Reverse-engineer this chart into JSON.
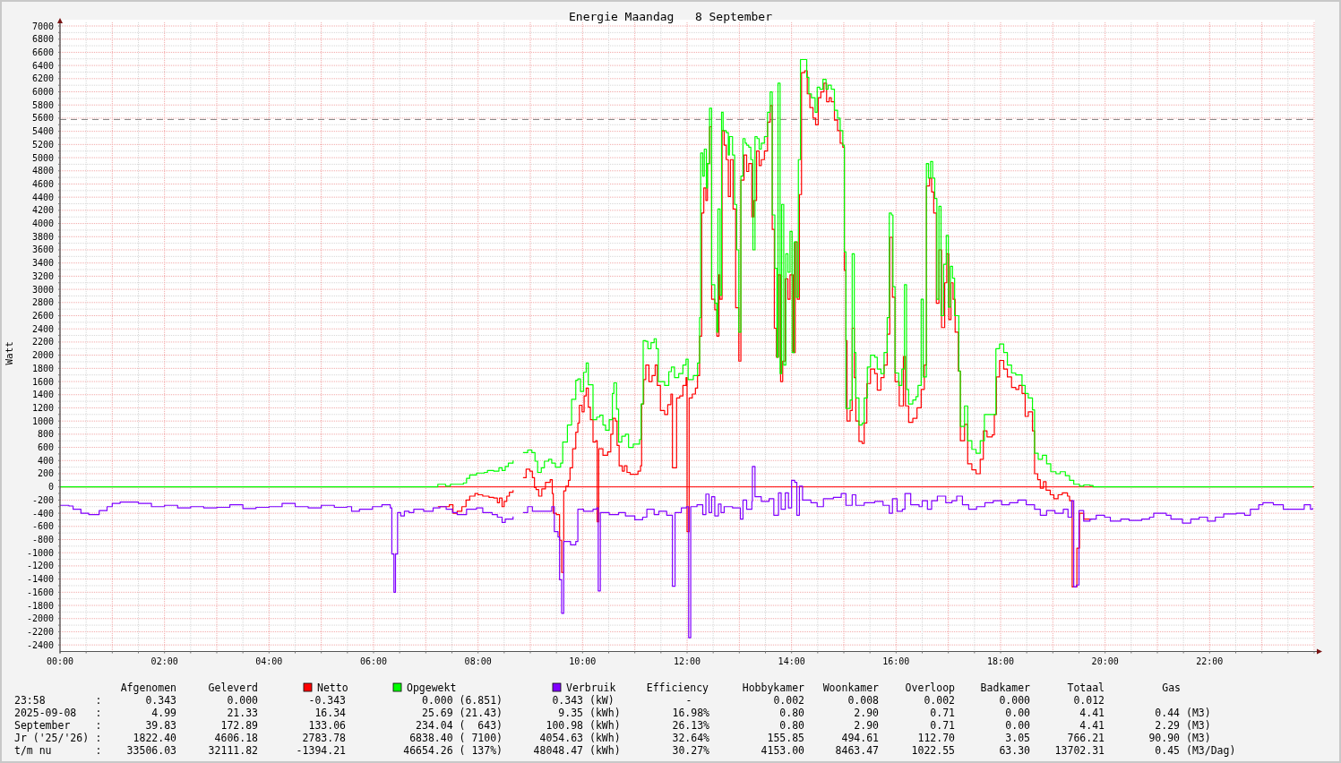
{
  "chart_data": {
    "type": "step",
    "title": "Energie Maandag   8 September",
    "ylabel": "Watt",
    "xlim": [
      0,
      24
    ],
    "ylim": [
      -2500,
      7000
    ],
    "xticks": [
      {
        "value": 0,
        "label": "00:00"
      },
      {
        "value": 0.5,
        "label": null
      },
      {
        "value": 1,
        "label": null
      },
      {
        "value": 1.5,
        "label": null
      },
      {
        "value": 2,
        "label": "02:00"
      },
      {
        "value": 2.5,
        "label": null
      },
      {
        "value": 3,
        "label": null
      },
      {
        "value": 3.5,
        "label": null
      },
      {
        "value": 4,
        "label": "04:00"
      },
      {
        "value": 4.5,
        "label": null
      },
      {
        "value": 5,
        "label": null
      },
      {
        "value": 5.5,
        "label": null
      },
      {
        "value": 6,
        "label": "06:00"
      },
      {
        "value": 6.5,
        "label": null
      },
      {
        "value": 7,
        "label": null
      },
      {
        "value": 7.5,
        "label": null
      },
      {
        "value": 8,
        "label": "08:00"
      },
      {
        "value": 8.5,
        "label": null
      },
      {
        "value": 9,
        "label": null
      },
      {
        "value": 9.5,
        "label": null
      },
      {
        "value": 10,
        "label": "10:00"
      },
      {
        "value": 10.5,
        "label": null
      },
      {
        "value": 11,
        "label": null
      },
      {
        "value": 11.5,
        "label": null
      },
      {
        "value": 12,
        "label": "12:00"
      },
      {
        "value": 12.5,
        "label": null
      },
      {
        "value": 13,
        "label": null
      },
      {
        "value": 13.5,
        "label": null
      },
      {
        "value": 14,
        "label": "14:00"
      },
      {
        "value": 14.5,
        "label": null
      },
      {
        "value": 15,
        "label": null
      },
      {
        "value": 15.5,
        "label": null
      },
      {
        "value": 16,
        "label": "16:00"
      },
      {
        "value": 16.5,
        "label": null
      },
      {
        "value": 17,
        "label": null
      },
      {
        "value": 17.5,
        "label": null
      },
      {
        "value": 18,
        "label": "18:00"
      },
      {
        "value": 18.5,
        "label": null
      },
      {
        "value": 19,
        "label": null
      },
      {
        "value": 19.5,
        "label": null
      },
      {
        "value": 20,
        "label": "20:00"
      },
      {
        "value": 20.5,
        "label": null
      },
      {
        "value": 21,
        "label": null
      },
      {
        "value": 21.5,
        "label": null
      },
      {
        "value": 22,
        "label": "22:00"
      },
      {
        "value": 22.5,
        "label": null
      },
      {
        "value": 23,
        "label": null
      },
      {
        "value": 23.5,
        "label": null
      },
      {
        "value": 24,
        "label": null
      }
    ],
    "yticks": [
      -2400,
      {
        "value": -2300,
        "label": null
      },
      -2200,
      {
        "value": -2100,
        "label": null
      },
      -2000,
      {
        "value": -1900,
        "label": null
      },
      -1800,
      {
        "value": -1700,
        "label": null
      },
      -1600,
      {
        "value": -1500,
        "label": null
      },
      -1400,
      {
        "value": -1300,
        "label": null
      },
      -1200,
      {
        "value": -1100,
        "label": null
      },
      -1000,
      {
        "value": -900,
        "label": null
      },
      -800,
      {
        "value": -700,
        "label": null
      },
      -600,
      {
        "value": -500,
        "label": null
      },
      -400,
      {
        "value": -300,
        "label": null
      },
      -200,
      {
        "value": -100,
        "label": null
      },
      0,
      {
        "value": 100,
        "label": null
      },
      200,
      {
        "value": 300,
        "label": null
      },
      400,
      {
        "value": 500,
        "label": null
      },
      600,
      {
        "value": 700,
        "label": null
      },
      800,
      {
        "value": 900,
        "label": null
      },
      1000,
      {
        "value": 1100,
        "label": null
      },
      1200,
      {
        "value": 1300,
        "label": null
      },
      1400,
      {
        "value": 1500,
        "label": null
      },
      1600,
      {
        "value": 1700,
        "label": null
      },
      1800,
      {
        "value": 1900,
        "label": null
      },
      2000,
      {
        "value": 2100,
        "label": null
      },
      2200,
      {
        "value": 2300,
        "label": null
      },
      2400,
      {
        "value": 2500,
        "label": null
      },
      2600,
      {
        "value": 2700,
        "label": null
      },
      2800,
      {
        "value": 2900,
        "label": null
      },
      3000,
      {
        "value": 3100,
        "label": null
      },
      3200,
      {
        "value": 3300,
        "label": null
      },
      3400,
      {
        "value": 3500,
        "label": null
      },
      3600,
      {
        "value": 3700,
        "label": null
      },
      3800,
      {
        "value": 3900,
        "label": null
      },
      4000,
      {
        "value": 4100,
        "label": null
      },
      4200,
      {
        "value": 4300,
        "label": null
      },
      4400,
      {
        "value": 4500,
        "label": null
      },
      4600,
      {
        "value": 4700,
        "label": null
      },
      4800,
      {
        "value": 4900,
        "label": null
      },
      5000,
      {
        "value": 5100,
        "label": null
      },
      5200,
      {
        "value": 5300,
        "label": null
      },
      5400,
      {
        "value": 5500,
        "label": null
      },
      5600,
      {
        "value": 5700,
        "label": null
      },
      5800,
      {
        "value": 5900,
        "label": null
      },
      6000,
      {
        "value": 6100,
        "label": null
      },
      6200,
      {
        "value": 6300,
        "label": null
      },
      6400,
      {
        "value": 6500,
        "label": null
      },
      6600,
      {
        "value": 6700,
        "label": null
      },
      6800,
      {
        "value": 6900,
        "label": null
      },
      7000
    ],
    "grid": true,
    "legend": "bottom",
    "ref_lines": [
      {
        "axis": "y",
        "value": 0,
        "color": "#ff0000"
      },
      {
        "axis": "y",
        "value": 5580,
        "color": "#808080",
        "line_style": "dashed"
      }
    ],
    "series": [
      {
        "name": "Netto",
        "color": "#ff0000",
        "x": [
          7.23,
          7.45,
          7.52,
          7.6,
          7.69,
          7.77,
          7.84,
          7.94,
          8.0,
          8.09,
          8.21,
          8.3,
          8.37,
          8.41,
          8.46,
          8.5,
          8.55,
          8.6,
          8.67,
          8.72,
          8.86,
          8.92,
          8.99,
          9.04,
          9.08,
          9.11,
          9.16,
          9.22,
          9.29,
          9.38,
          9.42,
          9.44,
          9.5,
          9.56,
          9.6,
          9.64,
          9.68,
          9.73,
          9.76,
          9.81,
          9.87,
          9.91,
          9.94,
          9.99,
          10.03,
          10.07,
          10.11,
          10.15,
          10.2,
          10.25,
          10.28,
          10.31,
          10.39,
          10.48,
          10.54,
          10.58,
          10.63,
          10.66,
          10.7,
          10.76,
          10.8,
          10.85,
          10.91,
          11.06,
          11.11,
          11.13,
          11.17,
          11.21,
          11.27,
          11.33,
          11.39,
          11.43,
          11.49,
          11.57,
          11.63,
          11.69,
          11.72,
          11.8,
          11.86,
          11.92,
          11.98,
          12.0,
          12.04,
          12.1,
          12.16,
          12.2,
          12.24,
          12.28,
          12.32,
          12.36,
          12.39,
          12.43,
          12.47,
          12.53,
          12.57,
          12.61,
          12.63,
          12.67,
          12.71,
          12.75,
          12.79,
          12.83,
          12.88,
          12.93,
          12.99,
          13.03,
          13.09,
          13.14,
          13.18,
          13.24,
          13.28,
          13.33,
          13.38,
          13.42,
          13.48,
          13.54,
          13.59,
          13.63,
          13.67,
          13.71,
          13.75,
          13.79,
          13.83,
          13.88,
          13.93,
          13.97,
          14.03,
          14.07,
          14.11,
          14.15,
          14.19,
          14.25,
          14.3,
          14.35,
          14.41,
          14.46,
          14.51,
          14.56,
          14.62,
          14.67,
          14.72,
          14.76,
          14.82,
          14.88,
          14.93,
          14.98,
          15.01,
          15.04,
          15.06,
          15.12,
          15.16,
          15.2,
          15.23,
          15.29,
          15.35,
          15.39,
          15.44,
          15.51,
          15.59,
          15.64,
          15.71,
          15.77,
          15.83,
          15.88,
          15.93,
          15.98,
          16.06,
          16.14,
          16.18,
          16.24,
          16.32,
          16.4,
          16.48,
          16.54,
          16.58,
          16.64,
          16.68,
          16.72,
          16.77,
          16.82,
          16.87,
          16.93,
          16.97,
          17.01,
          17.05,
          17.09,
          17.13,
          17.19,
          17.23,
          17.31,
          17.37,
          17.45,
          17.53,
          17.61,
          17.67,
          17.74,
          17.84,
          17.88,
          17.92,
          17.98,
          18.06,
          18.13,
          18.21,
          18.29,
          18.35,
          18.41,
          18.47,
          18.53,
          18.61,
          18.65,
          18.71,
          18.76,
          18.82,
          18.87,
          18.95,
          19.02,
          19.1,
          19.18,
          19.28,
          19.32,
          19.37,
          19.46,
          19.51,
          19.59,
          19.75
        ],
        "values": [
          -300,
          -270,
          -400,
          -370,
          -300,
          -200,
          -140,
          -100,
          -120,
          -140,
          -160,
          -170,
          -240,
          -170,
          -300,
          -220,
          -140,
          -80,
          -50,
          null,
          140,
          270,
          240,
          140,
          -10,
          -40,
          -140,
          -30,
          70,
          110,
          -100,
          -400,
          -420,
          -810,
          -1300,
          -60,
          10,
          100,
          290,
          580,
          830,
          970,
          1240,
          1140,
          1380,
          1500,
          1210,
          1020,
          680,
          700,
          -530,
          580,
          480,
          530,
          800,
          1040,
          1000,
          630,
          320,
          240,
          320,
          220,
          190,
          240,
          320,
          1260,
          1630,
          1850,
          1600,
          1690,
          1850,
          1540,
          1160,
          1100,
          1250,
          1410,
          290,
          1350,
          1380,
          1540,
          1660,
          -680,
          1350,
          1410,
          1500,
          1690,
          2290,
          4160,
          4540,
          4350,
          4910,
          5470,
          2850,
          2690,
          2290,
          3220,
          2850,
          5410,
          5190,
          4970,
          4410,
          4970,
          4220,
          2720,
          1910,
          4660,
          5040,
          4790,
          4910,
          4100,
          4350,
          5100,
          4880,
          4970,
          5100,
          5540,
          5790,
          3910,
          2410,
          1970,
          3220,
          1600,
          1910,
          3160,
          2850,
          3220,
          2040,
          3720,
          2850,
          4440,
          6290,
          6320,
          5970,
          5760,
          5600,
          5500,
          5910,
          6000,
          6130,
          5850,
          5910,
          5850,
          5570,
          5410,
          5220,
          5160,
          3290,
          2220,
          1000,
          1160,
          2410,
          1660,
          1000,
          690,
          660,
          970,
          1570,
          1790,
          1720,
          1470,
          1660,
          1850,
          2320,
          3790,
          2880,
          1600,
          1230,
          1980,
          1230,
          980,
          1040,
          1200,
          1480,
          1850,
          4570,
          4690,
          4480,
          4160,
          2790,
          3600,
          2420,
          3100,
          3540,
          2540,
          3100,
          2850,
          2350,
          1760,
          700,
          950,
          350,
          260,
          200,
          420,
          850,
          760,
          790,
          1100,
          1670,
          1920,
          1790,
          1670,
          1510,
          1480,
          1540,
          1420,
          1070,
          1140,
          850,
          200,
          110,
          -20,
          80,
          -50,
          -120,
          -180,
          -120,
          -90,
          -140,
          -210,
          -1520,
          -930,
          -400,
          -490,
          -490
        ]
      },
      {
        "name": "Opgewekt",
        "color": "#00ff00",
        "x": [
          0,
          7.23,
          7.38,
          7.47,
          7.63,
          7.72,
          7.78,
          7.84,
          7.97,
          8.12,
          8.18,
          8.3,
          8.4,
          8.46,
          8.52,
          8.58,
          8.67,
          8.72,
          8.86,
          8.95,
          9.03,
          9.09,
          9.14,
          9.21,
          9.27,
          9.35,
          9.41,
          9.48,
          9.58,
          9.62,
          9.71,
          9.79,
          9.87,
          9.91,
          9.96,
          10.02,
          10.07,
          10.11,
          10.2,
          10.27,
          10.33,
          10.39,
          10.44,
          10.51,
          10.57,
          10.6,
          10.65,
          10.69,
          10.75,
          10.82,
          10.88,
          10.97,
          11.09,
          11.12,
          11.16,
          11.21,
          11.25,
          11.31,
          11.37,
          11.41,
          11.45,
          11.57,
          11.65,
          11.7,
          11.76,
          11.84,
          11.92,
          11.98,
          12.02,
          12.12,
          12.2,
          12.24,
          12.26,
          12.3,
          12.33,
          12.37,
          12.39,
          12.43,
          12.47,
          12.53,
          12.57,
          12.59,
          12.63,
          12.66,
          12.69,
          12.75,
          12.79,
          12.81,
          12.87,
          12.91,
          12.95,
          12.99,
          13.03,
          13.07,
          13.11,
          13.14,
          13.18,
          13.22,
          13.26,
          13.3,
          13.34,
          13.38,
          13.42,
          13.48,
          13.54,
          13.59,
          13.63,
          13.68,
          13.72,
          13.74,
          13.78,
          13.81,
          13.85,
          13.89,
          13.93,
          13.97,
          14.01,
          14.05,
          14.09,
          14.13,
          14.17,
          14.29,
          14.33,
          14.38,
          14.45,
          14.49,
          14.54,
          14.6,
          14.66,
          14.7,
          14.76,
          14.82,
          14.88,
          14.93,
          14.98,
          15.01,
          15.04,
          15.12,
          15.16,
          15.2,
          15.23,
          15.29,
          15.35,
          15.39,
          15.45,
          15.51,
          15.59,
          15.64,
          15.71,
          15.77,
          15.83,
          15.87,
          15.91,
          15.94,
          15.98,
          16.05,
          16.11,
          16.16,
          16.2,
          16.24,
          16.32,
          16.38,
          16.42,
          16.48,
          16.52,
          16.58,
          16.62,
          16.66,
          16.7,
          16.74,
          16.78,
          16.82,
          16.86,
          16.91,
          16.96,
          17.0,
          17.04,
          17.08,
          17.12,
          17.2,
          17.23,
          17.31,
          17.37,
          17.45,
          17.53,
          17.61,
          17.69,
          17.91,
          17.98,
          18.06,
          18.13,
          18.21,
          18.29,
          18.41,
          18.47,
          18.53,
          18.61,
          18.65,
          18.72,
          18.8,
          18.88,
          18.96,
          19.06,
          19.14,
          19.24,
          19.32,
          19.4,
          19.51,
          19.59,
          19.71,
          19.77,
          23.97
        ],
        "values": [
          0,
          40,
          10,
          40,
          40,
          60,
          130,
          180,
          210,
          220,
          250,
          240,
          290,
          250,
          310,
          360,
          400,
          null,
          520,
          560,
          520,
          390,
          220,
          290,
          390,
          420,
          360,
          300,
          360,
          680,
          940,
          1330,
          1620,
          1640,
          1450,
          1740,
          1880,
          1550,
          1020,
          1060,
          1090,
          940,
          860,
          1020,
          1420,
          1580,
          1180,
          680,
          770,
          800,
          600,
          650,
          720,
          1260,
          2220,
          2210,
          2100,
          2190,
          2250,
          2100,
          1600,
          1540,
          1750,
          1820,
          1660,
          1720,
          1850,
          1940,
          1630,
          1690,
          1880,
          2570,
          5070,
          4720,
          5130,
          4540,
          4910,
          5750,
          3070,
          2790,
          2350,
          4220,
          2910,
          5690,
          5410,
          5380,
          5040,
          5320,
          5040,
          4290,
          3600,
          2350,
          4720,
          5290,
          5220,
          5190,
          5160,
          4970,
          3600,
          5320,
          5290,
          5130,
          5220,
          5320,
          5690,
          6000,
          4130,
          3320,
          1970,
          6130,
          1720,
          4290,
          1850,
          3540,
          3260,
          3880,
          2040,
          3720,
          2880,
          4970,
          6490,
          6220,
          5970,
          5910,
          5690,
          6070,
          6040,
          6190,
          6040,
          6100,
          6040,
          5720,
          5600,
          5410,
          5190,
          3570,
          1190,
          1320,
          3540,
          2040,
          1350,
          940,
          970,
          1350,
          1820,
          2000,
          1970,
          1790,
          1720,
          2040,
          2570,
          4160,
          4130,
          3040,
          1730,
          1540,
          1790,
          3070,
          1480,
          1260,
          1320,
          1370,
          1540,
          2850,
          1670,
          4910,
          4690,
          4940,
          4690,
          4380,
          2850,
          4260,
          2600,
          3380,
          3820,
          2730,
          3350,
          3170,
          2600,
          1760,
          920,
          1230,
          700,
          570,
          510,
          700,
          1100,
          2100,
          2170,
          2040,
          1850,
          1730,
          1700,
          1540,
          1420,
          1350,
          1170,
          510,
          420,
          480,
          350,
          230,
          200,
          230,
          170,
          100,
          40,
          10,
          30,
          20,
          0,
          0
        ]
      },
      {
        "name": "Verbruik",
        "color": "#8000ff",
        "x": [
          0,
          0.17,
          0.25,
          0.4,
          0.55,
          0.75,
          0.9,
          1.0,
          1.15,
          1.5,
          1.75,
          2.0,
          2.25,
          2.5,
          2.75,
          3.0,
          3.25,
          3.5,
          3.75,
          4.0,
          4.25,
          4.5,
          4.75,
          5.0,
          5.25,
          5.49,
          5.58,
          5.73,
          5.98,
          6.16,
          6.32,
          6.35,
          6.39,
          6.42,
          6.46,
          6.52,
          6.59,
          6.68,
          6.77,
          6.96,
          7.14,
          7.27,
          7.39,
          7.51,
          7.6,
          7.78,
          7.97,
          8.09,
          8.27,
          8.37,
          8.46,
          8.52,
          8.67,
          8.72,
          8.86,
          8.95,
          9.04,
          9.41,
          9.46,
          9.53,
          9.56,
          9.6,
          9.64,
          9.77,
          9.87,
          9.91,
          10.02,
          10.2,
          10.27,
          10.3,
          10.34,
          10.51,
          10.69,
          10.82,
          11.0,
          11.15,
          11.23,
          11.37,
          11.46,
          11.61,
          11.72,
          11.77,
          11.89,
          11.99,
          12.03,
          12.07,
          12.19,
          12.3,
          12.36,
          12.42,
          12.47,
          12.53,
          12.6,
          12.65,
          12.71,
          12.87,
          13.02,
          13.07,
          13.14,
          13.24,
          13.25,
          13.3,
          13.42,
          13.57,
          13.66,
          13.75,
          13.8,
          13.88,
          13.94,
          14.0,
          14.06,
          14.1,
          14.15,
          14.21,
          14.37,
          14.49,
          14.61,
          14.8,
          14.95,
          15.04,
          15.16,
          15.23,
          15.39,
          15.59,
          15.75,
          15.87,
          15.93,
          16.02,
          16.12,
          16.17,
          16.28,
          16.44,
          16.5,
          16.6,
          16.68,
          16.79,
          16.95,
          17.07,
          17.16,
          17.27,
          17.39,
          17.54,
          17.7,
          17.86,
          18.02,
          18.17,
          18.33,
          18.49,
          18.65,
          18.76,
          18.88,
          19.04,
          19.2,
          19.29,
          19.36,
          19.4,
          19.45,
          19.5,
          19.59,
          19.71,
          19.83,
          19.99,
          20.1,
          20.3,
          20.46,
          20.7,
          20.85,
          20.93,
          21.17,
          21.26,
          21.48,
          21.64,
          21.8,
          21.96,
          22.11,
          22.27,
          22.51,
          22.67,
          22.78,
          22.94,
          23.02,
          23.22,
          23.41,
          23.69,
          23.81,
          23.93,
          23.97
        ],
        "values": [
          -280,
          -290,
          -340,
          -400,
          -420,
          -360,
          -300,
          -250,
          -230,
          -250,
          -300,
          -280,
          -320,
          -300,
          -320,
          -310,
          -270,
          -330,
          -310,
          -300,
          -250,
          -300,
          -320,
          -280,
          -310,
          -300,
          -370,
          -340,
          -300,
          -270,
          -320,
          -1020,
          -1600,
          -1020,
          -390,
          -440,
          -370,
          -390,
          -340,
          -370,
          -320,
          -300,
          -340,
          -390,
          -420,
          -340,
          -320,
          -390,
          -420,
          -460,
          -540,
          -490,
          -450,
          null,
          -390,
          -300,
          -370,
          -300,
          -680,
          -760,
          -1410,
          -1920,
          -830,
          -880,
          -830,
          -340,
          -370,
          -340,
          -320,
          -1580,
          -390,
          -420,
          -390,
          -440,
          -500,
          -460,
          -340,
          -420,
          -370,
          -430,
          -1510,
          -390,
          -320,
          -300,
          -2290,
          -300,
          -270,
          -420,
          -110,
          -390,
          -150,
          -440,
          -260,
          -390,
          -300,
          -320,
          -490,
          -200,
          -340,
          -220,
          310,
          -150,
          -220,
          -180,
          -430,
          -90,
          -340,
          -90,
          -320,
          100,
          70,
          -430,
          10,
          -200,
          -240,
          -300,
          -180,
          -160,
          -100,
          -280,
          -120,
          -280,
          -240,
          -220,
          -280,
          -400,
          -180,
          -370,
          -340,
          -100,
          -270,
          -300,
          -210,
          -340,
          -210,
          -140,
          -240,
          -210,
          -140,
          -270,
          -340,
          -300,
          -240,
          -210,
          -270,
          -240,
          -200,
          -270,
          -340,
          -430,
          -360,
          -400,
          -340,
          -460,
          -210,
          -1520,
          -1490,
          -360,
          -520,
          -490,
          -430,
          -460,
          -520,
          -490,
          -510,
          -490,
          -460,
          -400,
          -430,
          -490,
          -550,
          -490,
          -460,
          -520,
          -460,
          -410,
          -400,
          -430,
          -340,
          -270,
          -240,
          -270,
          -340,
          -340,
          -270,
          -340,
          -320
        ]
      }
    ],
    "annotations": [
      "Afgenomen",
      "Geleverd",
      "Efficiency",
      "Hobbykamer",
      "Woonkamer",
      "Overloop",
      "Badkamer",
      "Totaal",
      "Gas",
      "23:58",
      ":",
      "0.343",
      "0.000",
      "-0.343",
      "0.000 (6.851)",
      "0.343",
      "(kW)",
      "-",
      "0.002",
      "0.008",
      "0.002",
      "0.000",
      "0.012",
      "2025-09-08",
      ":",
      "4.99",
      "21.33",
      "16.34",
      "25.69 (21.43)",
      "9.35",
      "(kWh)",
      "16.98%",
      "0.80",
      "2.90",
      "0.71",
      "0.00",
      "4.41",
      "0.44",
      "(M3)",
      "September",
      ":",
      "39.83",
      "172.89",
      "133.06",
      "234.04 (  643)",
      "100.98",
      "(kWh)",
      "26.13%",
      "0.80",
      "2.90",
      "0.71",
      "0.00",
      "4.41",
      "2.29",
      "(M3)",
      "Jr ('25/'26)",
      ":",
      "1822.40",
      "4606.18",
      "2783.78",
      "6838.40 ( 7100)",
      "4054.63",
      "(kWh)",
      "32.64%",
      "155.85",
      "494.61",
      "112.70",
      "3.05",
      "766.21",
      "90.90",
      "(M3)",
      "t/m nu",
      ":",
      "33506.03",
      "32111.82",
      "-1394.21",
      "46654.26 ( 137%)",
      "48048.47",
      "(kWh)",
      "30.27%",
      "4153.00",
      "8463.47",
      "1022.55",
      "63.30",
      "13702.31",
      "0.45",
      "(M3/Dag)"
    ]
  }
}
